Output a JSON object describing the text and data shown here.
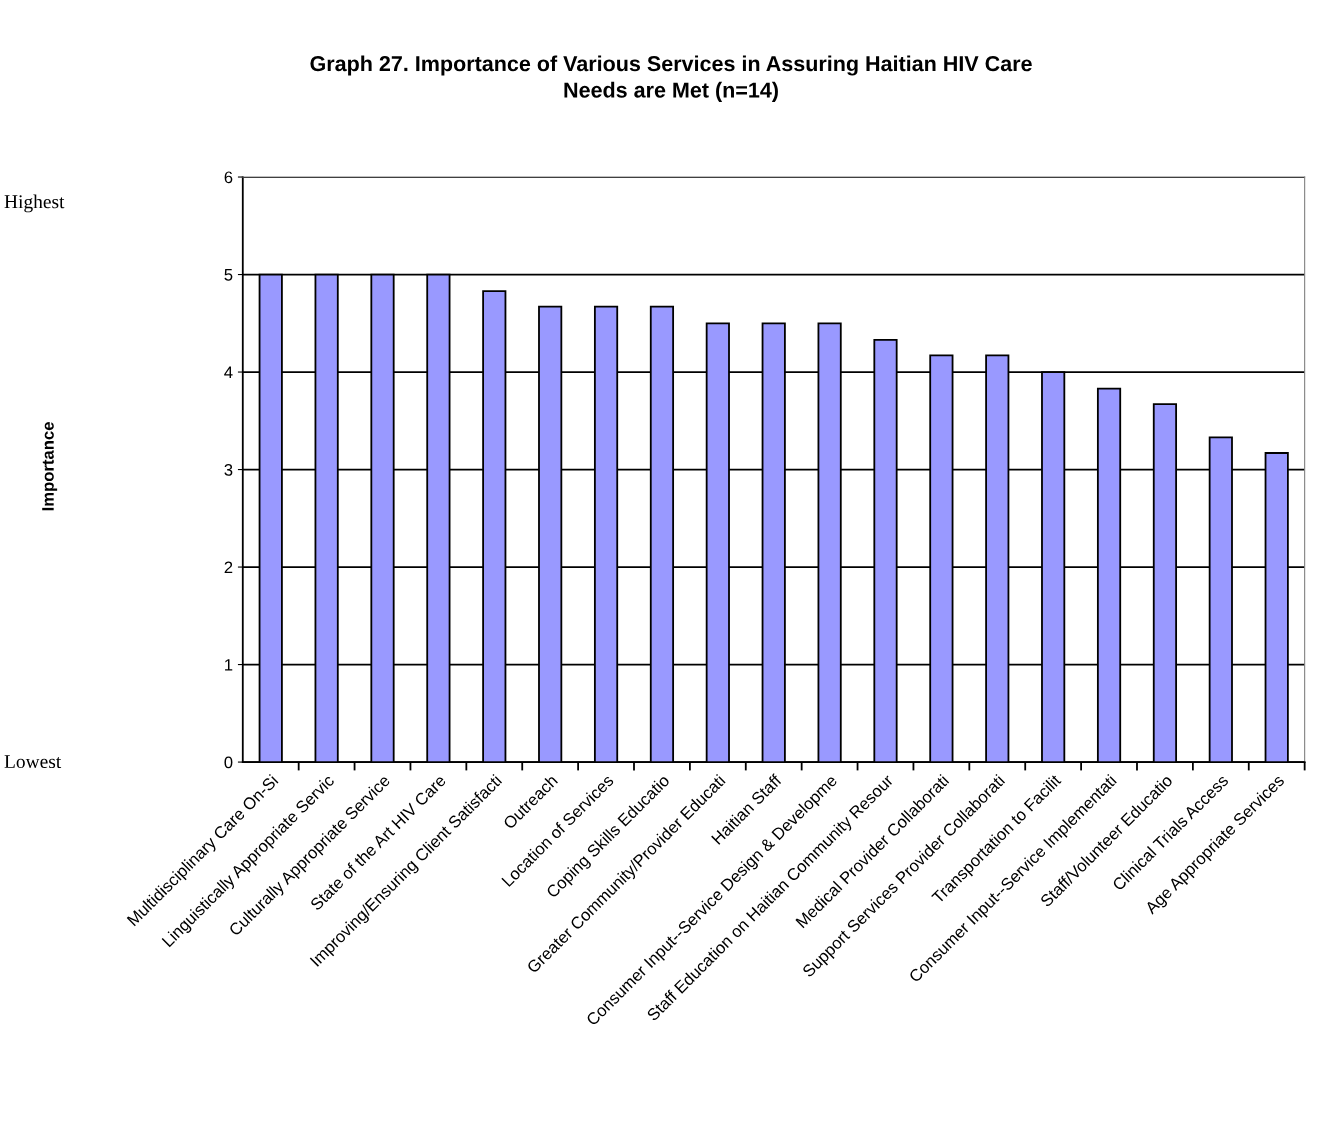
{
  "chart_data": {
    "type": "bar",
    "title": "Graph 27. Importance of Various Services in Assuring Haitian HIV Care\nNeeds are Met (n=14)",
    "ylabel": "Importance",
    "categories": [
      "Multidisciplinary Care On-Si",
      "Linguistically Appropriate Servic",
      "Culturally Appropriate Service",
      "State of the Art HIV Care",
      "Improving/Ensuring Client Satisfacti",
      "Outreach",
      "Location of Services",
      "Coping Skills Educatio",
      "Greater Community/Provider Educati",
      "Haitian Staff",
      "Consumer Input--Service Design & Developme",
      "Staff Education on Haitian Community Resour",
      "Medical Provider Collaborati",
      "Support Services Provider Collaborati",
      "Transportation to Facilit",
      "Consumer Input--Service Implementati",
      "Staff/Volunteer Educatio",
      "Clinical Trials Access",
      "Age Appropriate Services"
    ],
    "values": [
      5,
      5,
      5,
      5,
      4.83,
      4.67,
      4.67,
      4.67,
      4.5,
      4.5,
      4.5,
      4.33,
      4.17,
      4.17,
      4,
      3.83,
      3.67,
      3.33,
      3.17
    ],
    "color": "#9999ff",
    "ylim": [
      0,
      6
    ],
    "yticks": [
      0,
      1,
      2,
      3,
      4,
      5,
      6
    ],
    "grid": "y",
    "annotations": [
      "Highest",
      "Lowest"
    ]
  }
}
